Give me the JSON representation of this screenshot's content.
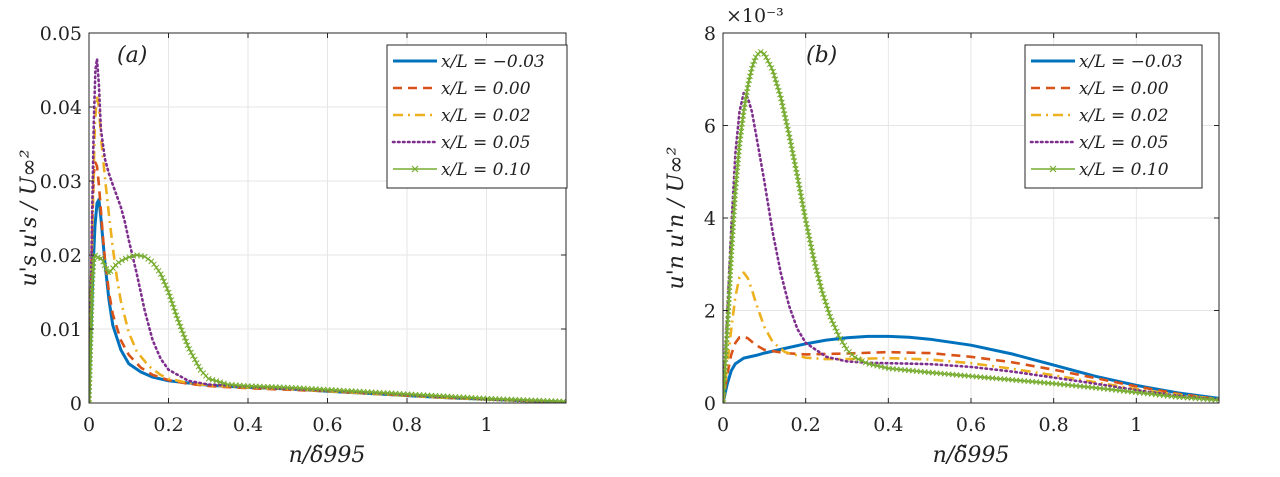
{
  "chart_data": [
    {
      "panel": "(a)",
      "type": "line",
      "xlabel": "n/δ̃995",
      "ylabel": "u's u's / U∞²",
      "xlim": [
        0,
        1.2
      ],
      "ylim": [
        0,
        0.05
      ],
      "xticks": [
        0,
        0.2,
        0.4,
        0.6,
        0.8,
        1
      ],
      "xtick_labels": [
        "0",
        "0.2",
        "0.4",
        "0.6",
        "0.8",
        "1"
      ],
      "yticks": [
        0,
        0.01,
        0.02,
        0.03,
        0.04,
        0.05
      ],
      "ytick_labels": [
        "0",
        "0.01",
        "0.02",
        "0.03",
        "0.04",
        "0.05"
      ],
      "grid": true,
      "legend_position": "top-right",
      "series": [
        {
          "name": "x/L = −0.03",
          "color": "#0072BD",
          "style": "solid",
          "x": [
            0,
            0.004,
            0.01,
            0.015,
            0.02,
            0.025,
            0.03,
            0.04,
            0.05,
            0.06,
            0.08,
            0.1,
            0.13,
            0.16,
            0.2,
            0.3,
            0.4,
            0.5,
            0.6,
            0.7,
            0.8,
            0.9,
            1.0,
            1.1,
            1.2
          ],
          "y": [
            0,
            0.008,
            0.018,
            0.024,
            0.027,
            0.0275,
            0.025,
            0.019,
            0.014,
            0.0105,
            0.0072,
            0.0053,
            0.0042,
            0.0035,
            0.003,
            0.0024,
            0.0021,
            0.0019,
            0.0016,
            0.0013,
            0.001,
            0.0007,
            0.0005,
            0.0003,
            0.0001
          ]
        },
        {
          "name": "x/L = 0.00",
          "color": "#D95319",
          "style": "dashed",
          "x": [
            0,
            0.004,
            0.008,
            0.012,
            0.016,
            0.02,
            0.025,
            0.03,
            0.035,
            0.04,
            0.05,
            0.06,
            0.08,
            0.1,
            0.13,
            0.16,
            0.2,
            0.25,
            0.3,
            0.4,
            0.5,
            0.6,
            0.7,
            0.8,
            0.9,
            1.0,
            1.1,
            1.2
          ],
          "y": [
            0,
            0.012,
            0.024,
            0.031,
            0.0325,
            0.032,
            0.0295,
            0.026,
            0.0225,
            0.0195,
            0.015,
            0.012,
            0.0085,
            0.0065,
            0.0048,
            0.0038,
            0.0031,
            0.0026,
            0.0023,
            0.002,
            0.0018,
            0.0016,
            0.0013,
            0.001,
            0.0007,
            0.0005,
            0.0003,
            0.0001
          ]
        },
        {
          "name": "x/L = 0.02",
          "color": "#EDB120",
          "style": "dashdot",
          "x": [
            0,
            0.005,
            0.01,
            0.015,
            0.02,
            0.025,
            0.03,
            0.04,
            0.05,
            0.06,
            0.07,
            0.08,
            0.1,
            0.12,
            0.15,
            0.18,
            0.2,
            0.25,
            0.3,
            0.4,
            0.5,
            0.6,
            0.7,
            0.8,
            0.9,
            1.0,
            1.1,
            1.2
          ],
          "y": [
            0,
            0.014,
            0.028,
            0.038,
            0.0415,
            0.04,
            0.036,
            0.0305,
            0.0255,
            0.021,
            0.017,
            0.0138,
            0.0095,
            0.007,
            0.005,
            0.0038,
            0.0033,
            0.0027,
            0.0024,
            0.0021,
            0.0019,
            0.0016,
            0.0013,
            0.001,
            0.0007,
            0.0005,
            0.0003,
            0.0001
          ]
        },
        {
          "name": "x/L = 0.05",
          "color": "#7E2F8E",
          "style": "dotted",
          "x": [
            0,
            0.004,
            0.008,
            0.012,
            0.016,
            0.02,
            0.025,
            0.03,
            0.04,
            0.05,
            0.06,
            0.07,
            0.08,
            0.09,
            0.1,
            0.12,
            0.14,
            0.16,
            0.18,
            0.2,
            0.25,
            0.3,
            0.4,
            0.5,
            0.6,
            0.7,
            0.8,
            0.9,
            1.0,
            1.1,
            1.2
          ],
          "y": [
            0,
            0.012,
            0.026,
            0.038,
            0.045,
            0.0465,
            0.043,
            0.037,
            0.033,
            0.031,
            0.0295,
            0.028,
            0.0265,
            0.0245,
            0.022,
            0.0175,
            0.0125,
            0.0085,
            0.006,
            0.0045,
            0.003,
            0.0025,
            0.0022,
            0.0019,
            0.0017,
            0.0014,
            0.0011,
            0.0008,
            0.0005,
            0.0003,
            0.0001
          ]
        },
        {
          "name": "x/L = 0.10",
          "color": "#77AC30",
          "style": "solid-x",
          "x": [
            0,
            0.004,
            0.008,
            0.012,
            0.016,
            0.02,
            0.025,
            0.03,
            0.035,
            0.04,
            0.05,
            0.06,
            0.07,
            0.08,
            0.1,
            0.12,
            0.14,
            0.16,
            0.18,
            0.2,
            0.22,
            0.25,
            0.28,
            0.3,
            0.35,
            0.4,
            0.5,
            0.6,
            0.7,
            0.8,
            0.9,
            1.0,
            1.1,
            1.2
          ],
          "y": [
            0,
            0.008,
            0.016,
            0.0195,
            0.02,
            0.0198,
            0.0195,
            0.0196,
            0.0192,
            0.0185,
            0.0175,
            0.0182,
            0.0188,
            0.0192,
            0.0197,
            0.02,
            0.0198,
            0.019,
            0.0175,
            0.015,
            0.0118,
            0.0075,
            0.0045,
            0.0033,
            0.0025,
            0.0023,
            0.0021,
            0.0018,
            0.0015,
            0.0012,
            0.0009,
            0.0006,
            0.0004,
            0.0002
          ]
        }
      ]
    },
    {
      "panel": "(b)",
      "type": "line",
      "xlabel": "n/δ̃995",
      "ylabel": "u'n u'n / U∞²",
      "exponent_label": "×10⁻³",
      "xlim": [
        0,
        1.2
      ],
      "ylim": [
        0,
        8
      ],
      "xticks": [
        0,
        0.2,
        0.4,
        0.6,
        0.8,
        1
      ],
      "xtick_labels": [
        "0",
        "0.2",
        "0.4",
        "0.6",
        "0.8",
        "1"
      ],
      "yticks": [
        0,
        2,
        4,
        6,
        8
      ],
      "ytick_labels": [
        "0",
        "2",
        "4",
        "6",
        "8"
      ],
      "grid": true,
      "legend_position": "top-right",
      "series": [
        {
          "name": "x/L = −0.03",
          "color": "#0072BD",
          "style": "solid",
          "x": [
            0,
            0.01,
            0.02,
            0.03,
            0.05,
            0.08,
            0.1,
            0.15,
            0.2,
            0.25,
            0.3,
            0.35,
            0.4,
            0.45,
            0.5,
            0.6,
            0.7,
            0.8,
            0.9,
            1.0,
            1.1,
            1.2
          ],
          "y": [
            0,
            0.4,
            0.7,
            0.85,
            0.97,
            1.03,
            1.08,
            1.18,
            1.28,
            1.36,
            1.41,
            1.44,
            1.44,
            1.42,
            1.38,
            1.25,
            1.06,
            0.82,
            0.58,
            0.38,
            0.22,
            0.1
          ]
        },
        {
          "name": "x/L = 0.00",
          "color": "#D95319",
          "style": "dashed",
          "x": [
            0,
            0.01,
            0.02,
            0.03,
            0.04,
            0.05,
            0.06,
            0.08,
            0.1,
            0.15,
            0.2,
            0.3,
            0.4,
            0.5,
            0.6,
            0.7,
            0.8,
            0.9,
            1.0,
            1.1,
            1.2
          ],
          "y": [
            0,
            0.6,
            1.05,
            1.3,
            1.42,
            1.44,
            1.4,
            1.25,
            1.15,
            1.08,
            1.05,
            1.07,
            1.1,
            1.08,
            1.0,
            0.88,
            0.72,
            0.54,
            0.36,
            0.2,
            0.08
          ]
        },
        {
          "name": "x/L = 0.02",
          "color": "#EDB120",
          "style": "dashdot",
          "x": [
            0,
            0.01,
            0.02,
            0.03,
            0.04,
            0.05,
            0.06,
            0.07,
            0.08,
            0.1,
            0.12,
            0.15,
            0.2,
            0.25,
            0.3,
            0.4,
            0.5,
            0.6,
            0.7,
            0.8,
            0.9,
            1.0,
            1.1,
            1.2
          ],
          "y": [
            0,
            0.8,
            1.6,
            2.3,
            2.72,
            2.82,
            2.7,
            2.45,
            2.15,
            1.65,
            1.32,
            1.1,
            0.98,
            0.95,
            0.95,
            0.97,
            0.94,
            0.86,
            0.74,
            0.6,
            0.45,
            0.3,
            0.18,
            0.08
          ]
        },
        {
          "name": "x/L = 0.05",
          "color": "#7E2F8E",
          "style": "dotted",
          "x": [
            0,
            0.01,
            0.02,
            0.03,
            0.04,
            0.05,
            0.06,
            0.07,
            0.08,
            0.1,
            0.12,
            0.14,
            0.16,
            0.18,
            0.2,
            0.25,
            0.3,
            0.35,
            0.4,
            0.5,
            0.6,
            0.7,
            0.8,
            0.9,
            1.0,
            1.1,
            1.2
          ],
          "y": [
            0,
            1.8,
            3.8,
            5.4,
            6.3,
            6.7,
            6.6,
            6.3,
            5.8,
            4.8,
            3.7,
            2.8,
            2.1,
            1.6,
            1.3,
            1.0,
            0.9,
            0.87,
            0.86,
            0.84,
            0.78,
            0.68,
            0.55,
            0.42,
            0.28,
            0.16,
            0.07
          ]
        },
        {
          "name": "x/L = 0.10",
          "color": "#77AC30",
          "style": "solid-x",
          "x": [
            0,
            0.01,
            0.02,
            0.03,
            0.04,
            0.05,
            0.06,
            0.07,
            0.08,
            0.09,
            0.1,
            0.12,
            0.14,
            0.16,
            0.18,
            0.2,
            0.22,
            0.24,
            0.26,
            0.28,
            0.3,
            0.32,
            0.35,
            0.4,
            0.5,
            0.6,
            0.7,
            0.8,
            0.9,
            1.0,
            1.1,
            1.2
          ],
          "y": [
            0,
            1.5,
            3.2,
            4.6,
            5.6,
            6.3,
            6.85,
            7.25,
            7.5,
            7.6,
            7.55,
            7.2,
            6.6,
            5.8,
            4.9,
            3.95,
            3.1,
            2.4,
            1.85,
            1.45,
            1.15,
            0.98,
            0.85,
            0.75,
            0.66,
            0.58,
            0.5,
            0.42,
            0.33,
            0.23,
            0.13,
            0.06
          ]
        }
      ]
    }
  ]
}
